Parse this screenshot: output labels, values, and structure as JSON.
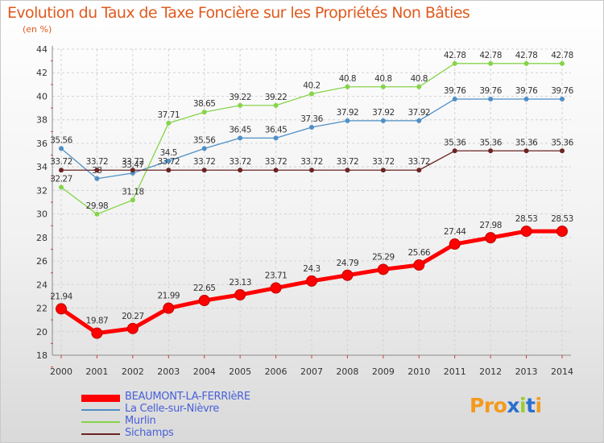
{
  "title": "Evolution du Taux de Taxe Foncière sur les Propriétés Non Bâties",
  "subtitle": "(en %)",
  "logo": {
    "p1": "Pro",
    "x": "x",
    "i": "i",
    "t": "t",
    "i2": "i"
  },
  "chart_data": {
    "type": "line",
    "categories": [
      "2000",
      "2001",
      "2002",
      "2003",
      "2004",
      "2005",
      "2006",
      "2007",
      "2008",
      "2009",
      "2010",
      "2011",
      "2012",
      "2013",
      "2014"
    ],
    "ylim": [
      18,
      44
    ],
    "yticks": [
      18,
      20,
      22,
      24,
      26,
      28,
      30,
      32,
      34,
      36,
      38,
      40,
      42,
      44
    ],
    "series": [
      {
        "name": "BEAUMONT-LA-FERRIèRE",
        "color": "#ff0000",
        "values": [
          21.94,
          19.87,
          20.27,
          21.99,
          22.65,
          23.13,
          23.71,
          24.3,
          24.79,
          25.29,
          25.66,
          27.44,
          27.98,
          28.53,
          28.53
        ]
      },
      {
        "name": "La Celle-sur-Nièvre",
        "color": "#4f8fc6",
        "values": [
          35.56,
          33.0,
          33.47,
          34.5,
          35.56,
          36.45,
          36.45,
          37.36,
          37.92,
          37.92,
          37.92,
          39.76,
          39.76,
          39.76,
          39.76
        ]
      },
      {
        "name": "Murlin",
        "color": "#86d44a",
        "values": [
          32.27,
          29.98,
          31.18,
          37.71,
          38.65,
          39.22,
          39.22,
          40.2,
          40.8,
          40.8,
          40.8,
          42.78,
          42.78,
          42.78,
          42.78
        ]
      },
      {
        "name": "Sichamps",
        "color": "#6b2323",
        "values": [
          33.72,
          33.72,
          33.72,
          33.72,
          33.72,
          33.72,
          33.72,
          33.72,
          33.72,
          33.72,
          33.72,
          35.36,
          35.36,
          35.36,
          35.36
        ]
      }
    ]
  }
}
